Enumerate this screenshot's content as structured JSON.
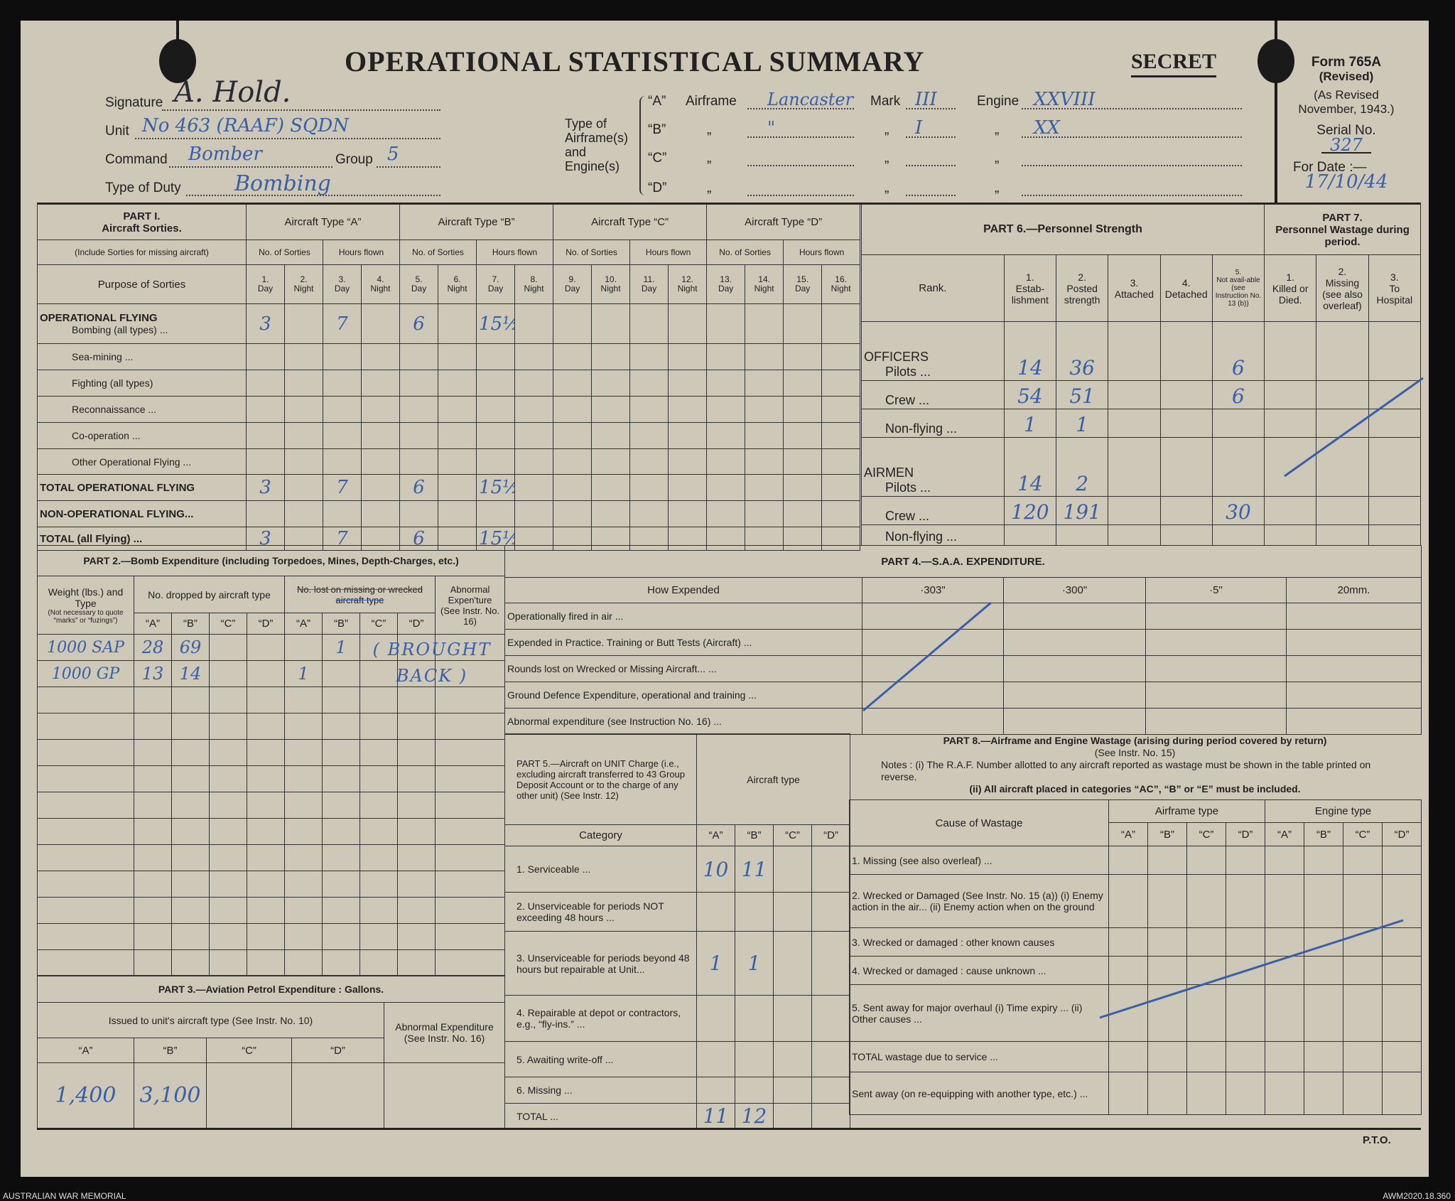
{
  "header": {
    "title": "OPERATIONAL STATISTICAL SUMMARY",
    "secret": "SECRET",
    "form_no": "Form 765A",
    "form_revised": "(Revised)",
    "form_revision": "(As Revised November, 1943.)",
    "serial_label": "Serial No.",
    "serial_value": "327",
    "date_label": "For Date :—",
    "date_value": "17/10/44"
  },
  "identity": {
    "signature_label": "Signature",
    "signature_value": "A. Hold.",
    "unit_label": "Unit",
    "unit_value": "No 463 (RAAF) SQDN",
    "command_label": "Command",
    "command_value": "Bomber",
    "group_label": "Group",
    "group_value": "5",
    "duty_label": "Type of Duty",
    "duty_value": "Bombing"
  },
  "airframes": {
    "label": "Type of Airframe(s) and Engine(s)",
    "airframe_label": "Airframe",
    "mark_label": "Mark",
    "engine_label": "Engine",
    "ditto": "„",
    "rows": [
      {
        "type": "“A”",
        "airframe": "Lancaster",
        "mark": "III",
        "engine": "XXVIII"
      },
      {
        "type": "“B”",
        "airframe": "\"",
        "mark": "I",
        "engine": "XX"
      },
      {
        "type": "“C”",
        "airframe": "",
        "mark": "",
        "engine": ""
      },
      {
        "type": "“D”",
        "airframe": "",
        "mark": "",
        "engine": ""
      }
    ]
  },
  "part1": {
    "title": "PART I.",
    "subtitle": "Aircraft Sorties.",
    "note": "(Include Sorties for missing aircraft)",
    "purpose_header": "Purpose of Sorties",
    "types": [
      "Aircraft Type “A”",
      "Aircraft Type “B”",
      "Aircraft Type “C”",
      "Aircraft Type “D”"
    ],
    "sub": [
      "No. of Sorties",
      "Hours flown"
    ],
    "cols": [
      {
        "n": "1.",
        "l": "Day"
      },
      {
        "n": "2.",
        "l": "Night"
      },
      {
        "n": "3.",
        "l": "Day"
      },
      {
        "n": "4.",
        "l": "Night"
      },
      {
        "n": "5.",
        "l": "Day"
      },
      {
        "n": "6.",
        "l": "Night"
      },
      {
        "n": "7.",
        "l": "Day"
      },
      {
        "n": "8.",
        "l": "Night"
      },
      {
        "n": "9.",
        "l": "Day"
      },
      {
        "n": "10.",
        "l": "Night"
      },
      {
        "n": "11.",
        "l": "Day"
      },
      {
        "n": "12.",
        "l": "Night"
      },
      {
        "n": "13.",
        "l": "Day"
      },
      {
        "n": "14.",
        "l": "Night"
      },
      {
        "n": "15.",
        "l": "Day"
      },
      {
        "n": "16.",
        "l": "Night"
      }
    ],
    "rows": [
      {
        "head": "OPERATIONAL FLYING",
        "label": "Bombing (all types) ...",
        "values": [
          "3",
          "",
          "7",
          "",
          "6",
          "",
          "15½",
          "",
          "",
          "",
          "",
          "",
          "",
          "",
          "",
          ""
        ]
      },
      {
        "label": "Sea-mining ...",
        "values": [
          "",
          "",
          "",
          "",
          "",
          "",
          "",
          "",
          "",
          "",
          "",
          "",
          "",
          "",
          "",
          ""
        ]
      },
      {
        "label": "Fighting (all types)",
        "values": [
          "",
          "",
          "",
          "",
          "",
          "",
          "",
          "",
          "",
          "",
          "",
          "",
          "",
          "",
          "",
          ""
        ]
      },
      {
        "label": "Reconnaissance ...",
        "values": [
          "",
          "",
          "",
          "",
          "",
          "",
          "",
          "",
          "",
          "",
          "",
          "",
          "",
          "",
          "",
          ""
        ]
      },
      {
        "label": "Co-operation ...",
        "values": [
          "",
          "",
          "",
          "",
          "",
          "",
          "",
          "",
          "",
          "",
          "",
          "",
          "",
          "",
          "",
          ""
        ]
      },
      {
        "label": "Other Operational Flying ...",
        "values": [
          "",
          "",
          "",
          "",
          "",
          "",
          "",
          "",
          "",
          "",
          "",
          "",
          "",
          "",
          "",
          ""
        ]
      },
      {
        "bold": "TOTAL OPERATIONAL FLYING",
        "values": [
          "3",
          "",
          "7",
          "",
          "6",
          "",
          "15½",
          "",
          "",
          "",
          "",
          "",
          "",
          "",
          "",
          ""
        ]
      },
      {
        "bold": "NON-OPERATIONAL FLYING...",
        "values": [
          "",
          "",
          "",
          "",
          "",
          "",
          "",
          "",
          "",
          "",
          "",
          "",
          "",
          "",
          "",
          ""
        ]
      },
      {
        "bold": "TOTAL (all Flying) ...",
        "values": [
          "3",
          "",
          "7",
          "",
          "6",
          "",
          "15½",
          "",
          "",
          "",
          "",
          "",
          "",
          "",
          "",
          ""
        ]
      }
    ]
  },
  "part6": {
    "title": "PART 6.—Personnel Strength",
    "rank_header": "Rank.",
    "cols": [
      {
        "n": "1.",
        "l": "Estab-lishment"
      },
      {
        "n": "2.",
        "l": "Posted strength"
      },
      {
        "n": "3.",
        "l": "Attached"
      },
      {
        "n": "4.",
        "l": "Detached"
      },
      {
        "n": "5.",
        "l": "Not avail-able (see Instruction No. 13 (b))"
      }
    ],
    "rows": [
      {
        "group": "OFFICERS",
        "label": "Pilots ...",
        "values": [
          "14",
          "36",
          "",
          "",
          "6"
        ]
      },
      {
        "label": "Crew ...",
        "values": [
          "54",
          "51",
          "",
          "",
          "6"
        ]
      },
      {
        "label": "Non-flying ...",
        "values": [
          "1",
          "1",
          "",
          "",
          ""
        ]
      },
      {
        "group": "AIRMEN",
        "label": "Pilots ...",
        "values": [
          "14",
          "2",
          "",
          "",
          ""
        ]
      },
      {
        "label": "Crew ...",
        "values": [
          "120",
          "191",
          "",
          "",
          "30"
        ]
      },
      {
        "label": "Non-flying ...",
        "values": [
          "",
          "",
          "",
          "",
          ""
        ]
      }
    ]
  },
  "part7": {
    "title": "PART 7.",
    "subtitle": "Personnel Wastage during period.",
    "cols": [
      {
        "n": "1.",
        "l": "Killed or Died."
      },
      {
        "n": "2.",
        "l": "Missing (see also overleaf)"
      },
      {
        "n": "3.",
        "l": "To Hospital"
      }
    ]
  },
  "part2": {
    "title": "PART 2.—Bomb Expenditure (including Torpedoes, Mines, Depth-Charges, etc.)",
    "weight_header": "Weight (lbs.) and Type",
    "weight_note": "(Not necessary to quote “marks” or “fuzings”)",
    "dropped_header": "No. dropped by aircraft type",
    "lost_header": "No. lost on missing or wrecked aircraft type",
    "abnormal_header": "Abnormal Expen'ture (See Instr. No. 16)",
    "types": [
      "“A”",
      "“B”",
      "“C”",
      "“D”"
    ],
    "rows": [
      {
        "weight": "1000 SAP",
        "dropped": [
          "28",
          "69",
          "",
          ""
        ],
        "lost": [
          "",
          "1",
          "",
          ""
        ]
      },
      {
        "weight": "1000 GP",
        "dropped": [
          "13",
          "14",
          "",
          ""
        ],
        "lost": [
          "1",
          "",
          "",
          ""
        ]
      }
    ],
    "annotation": "( BROUGHT BACK )"
  },
  "part3": {
    "title": "PART 3.—Aviation Petrol Expenditure : Gallons.",
    "issued_header": "Issued to unit's aircraft type (See Instr. No. 10)",
    "abnormal_header": "Abnormal Expenditure (See Instr. No. 16)",
    "types": [
      "“A”",
      "“B”",
      "“C”",
      "“D”"
    ],
    "values": [
      "1,400",
      "3,100",
      "",
      ""
    ]
  },
  "part4": {
    "title": "PART 4.—S.A.A. EXPENDITURE.",
    "how_header": "How Expended",
    "calibres": [
      "·303\"",
      "·300\"",
      "·5\"",
      "20mm."
    ],
    "rows": [
      "Operationally fired in air ...",
      "Expended in Practice. Training or Butt Tests (Aircraft) ...",
      "Rounds lost on Wrecked or Missing Aircraft... ...",
      "Ground Defence Expenditure, operational and training ...",
      "Abnormal expenditure (see Instruction No. 16) ..."
    ]
  },
  "part5": {
    "title": "PART 5.—Aircraft on UNIT Charge (i.e., excluding aircraft transferred to 43 Group Deposit Account or to the charge of any other unit) (See Instr. 12)",
    "aircraft_type_header": "Aircraft type",
    "category_header": "Category",
    "types": [
      "“A”",
      "“B”",
      "“C”",
      "“D”"
    ],
    "rows": [
      {
        "label": "1. Serviceable ...",
        "values": [
          "10",
          "11",
          "",
          ""
        ]
      },
      {
        "label": "2. Unserviceable for periods NOT exceeding 48 hours ...",
        "values": [
          "",
          "",
          "",
          ""
        ]
      },
      {
        "label": "3. Unserviceable for periods beyond 48 hours but repairable at Unit...",
        "values": [
          "1",
          "1",
          "",
          ""
        ]
      },
      {
        "label": "4. Repairable at depot or contractors, e.g., “fly-ins.” ...",
        "values": [
          "",
          "",
          "",
          ""
        ]
      },
      {
        "label": "5. Awaiting write-off ...",
        "values": [
          "",
          "",
          "",
          ""
        ]
      },
      {
        "label": "6. Missing ...",
        "values": [
          "",
          "",
          "",
          ""
        ]
      },
      {
        "label": "TOTAL ...",
        "values": [
          "11",
          "12",
          "",
          ""
        ]
      }
    ]
  },
  "part8": {
    "title": "PART 8.—Airframe and Engine Wastage (arising during period covered by return)",
    "instr": "(See Instr. No. 15)",
    "note1": "Notes : (i) The R.A.F. Number allotted to any aircraft reported as wastage must be shown in the table printed on reverse.",
    "note2": "(ii) All aircraft placed in categories “AC”, “B” or “E” must be included.",
    "cause_header": "Cause of Wastage",
    "airframe_header": "Airframe type",
    "engine_header": "Engine type",
    "types": [
      "“A”",
      "“B”",
      "“C”",
      "“D”"
    ],
    "rows": [
      "1. Missing (see also overleaf) ...",
      "2. Wrecked or Damaged (See Instr. No. 15 (a)) (i) Enemy action in the air... (ii) Enemy action when on the ground",
      "3. Wrecked or damaged : other known causes",
      "4. Wrecked or damaged : cause unknown ...",
      "5. Sent away for major overhaul (i) Time expiry ... (ii) Other causes ...",
      "TOTAL wastage due to service ...",
      "Sent away (on re-equipping with another type, etc.) ..."
    ]
  },
  "footer": {
    "pto": "P.T.O.",
    "credit": "AUSTRALIAN WAR MEMORIAL",
    "reference": "AWM2020.18.360"
  },
  "colors": {
    "paper": "#cdc8b7",
    "ink": "#3b5fa5",
    "print": "#222222"
  }
}
